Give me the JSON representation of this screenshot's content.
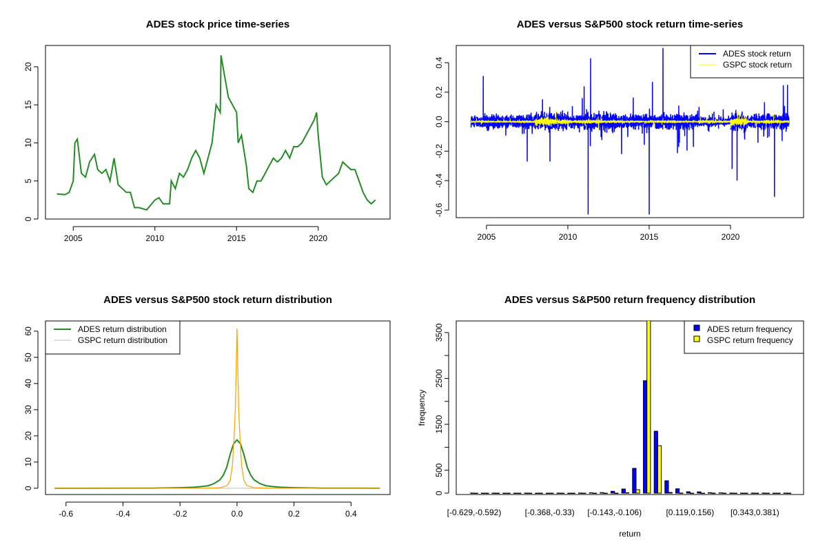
{
  "chart_data": [
    {
      "type": "line",
      "title": "ADES stock price time-series",
      "xlabel": "",
      "ylabel": "",
      "xlim": [
        2003.3,
        2024.4
      ],
      "ylim": [
        0,
        22.8
      ],
      "xticks": [
        2005,
        2010,
        2015,
        2020
      ],
      "xtick_labels": [
        "2005",
        "2010",
        "2015",
        "2020"
      ],
      "yticks": [
        0,
        5,
        10,
        15,
        20
      ],
      "ytick_labels": [
        "0",
        "5",
        "10",
        "15",
        "20"
      ],
      "color": "#228B22",
      "x": [
        2004.0,
        2004.5,
        2004.75,
        2005.0,
        2005.1,
        2005.25,
        2005.5,
        2005.75,
        2006.0,
        2006.3,
        2006.5,
        2006.75,
        2007.0,
        2007.25,
        2007.5,
        2007.75,
        2008.0,
        2008.25,
        2008.5,
        2008.75,
        2009.0,
        2009.5,
        2010.0,
        2010.25,
        2010.5,
        2010.9,
        2011.0,
        2011.25,
        2011.5,
        2011.75,
        2012.0,
        2012.25,
        2012.5,
        2012.75,
        2013.0,
        2013.25,
        2013.5,
        2013.75,
        2014.0,
        2014.05,
        2014.25,
        2014.5,
        2014.75,
        2015.0,
        2015.1,
        2015.3,
        2015.6,
        2015.75,
        2016.0,
        2016.25,
        2016.5,
        2016.75,
        2017.0,
        2017.25,
        2017.5,
        2017.75,
        2018.0,
        2018.25,
        2018.5,
        2018.75,
        2019.0,
        2019.25,
        2019.5,
        2019.75,
        2019.9,
        2020.0,
        2020.25,
        2020.5,
        2020.75,
        2021.0,
        2021.25,
        2021.5,
        2021.75,
        2022.0,
        2022.25,
        2022.5,
        2022.75,
        2023.0,
        2023.25,
        2023.5
      ],
      "y": [
        3.3,
        3.2,
        3.5,
        5,
        10,
        10.5,
        6,
        5.5,
        7.5,
        8.5,
        6.5,
        6,
        6.5,
        5,
        8,
        4.5,
        4,
        3.5,
        3.5,
        1.5,
        1.5,
        1.2,
        2.5,
        2.8,
        2,
        2,
        5,
        4,
        6,
        5.5,
        6.5,
        8,
        9,
        8,
        6,
        8,
        10,
        15,
        14,
        21.5,
        19,
        16,
        15,
        14,
        10,
        11,
        7,
        4,
        3.5,
        5,
        5,
        6,
        7,
        8,
        7.5,
        8,
        9,
        8,
        9.5,
        9.5,
        10,
        11,
        12,
        13,
        14,
        11,
        5.5,
        4.5,
        5,
        5.5,
        6,
        7.5,
        7,
        6.5,
        6.5,
        5,
        3.5,
        2.5,
        2,
        2.5
      ]
    },
    {
      "type": "line",
      "title": "ADES versus S&P500 stock return time-series",
      "xlim": [
        2003.14,
        2024.49
      ],
      "ylim": [
        -0.651,
        0.517
      ],
      "xticks": [
        2005,
        2010,
        2015,
        2020
      ],
      "xtick_labels": [
        "2005",
        "2010",
        "2015",
        "2020"
      ],
      "yticks": [
        -0.6,
        -0.4,
        -0.2,
        0.0,
        0.2,
        0.4
      ],
      "ytick_labels": [
        "-0.6",
        "-0.4",
        "-0.2",
        "0.0",
        "0.2",
        "0.4"
      ],
      "x_range": [
        2004.05,
        2023.6
      ],
      "series": [
        {
          "name": "ADES stock return",
          "color": "#0000FF",
          "volatility_by_year": {
            "start": 2004,
            "values": [
              0.04,
              0.05,
              0.05,
              0.05,
              0.06,
              0.07,
              0.05,
              0.06,
              0.07,
              0.05,
              0.05,
              0.05,
              0.06,
              0.05,
              0.04,
              0.03,
              0.06,
              0.05,
              0.06,
              0.07
            ]
          },
          "spikes": [
            [
              2004.8,
              0.31
            ],
            [
              2007.5,
              -0.27
            ],
            [
              2008.9,
              -0.27
            ],
            [
              2011.0,
              0.24
            ],
            [
              2011.25,
              -0.63
            ],
            [
              2011.4,
              0.43
            ],
            [
              2013.3,
              -0.22
            ],
            [
              2015.0,
              -0.63
            ],
            [
              2015.2,
              0.27
            ],
            [
              2015.85,
              0.5
            ],
            [
              2020.1,
              -0.32
            ],
            [
              2020.4,
              -0.4
            ],
            [
              2022.7,
              -0.51
            ],
            [
              2023.5,
              0.25
            ]
          ]
        },
        {
          "name": "GSPC stock return",
          "color": "#FFFF00",
          "volatility_by_year": {
            "start": 2004,
            "values": [
              0.008,
              0.006,
              0.006,
              0.01,
              0.03,
              0.02,
              0.012,
              0.015,
              0.01,
              0.008,
              0.008,
              0.01,
              0.01,
              0.005,
              0.012,
              0.01,
              0.03,
              0.01,
              0.015,
              0.01
            ]
          },
          "spikes": []
        }
      ],
      "legend": {
        "position": "top-right",
        "entries": [
          "ADES stock return",
          "GSPC stock return"
        ]
      }
    },
    {
      "type": "line",
      "title": "ADES versus S&P500 stock return distribution",
      "xlim": [
        -0.672,
        0.537
      ],
      "ylim": [
        -2.4,
        63.9
      ],
      "xticks": [
        -0.6,
        -0.4,
        -0.2,
        0.0,
        0.2,
        0.4
      ],
      "xtick_labels": [
        "-0.6",
        "-0.4",
        "-0.2",
        "0.0",
        "0.2",
        "0.4"
      ],
      "yticks": [
        0,
        10,
        20,
        30,
        40,
        50,
        60
      ],
      "ytick_labels": [
        "0",
        "10",
        "20",
        "30",
        "40",
        "50",
        "60"
      ],
      "series": [
        {
          "name": "ADES return distribution",
          "color": "#228B22",
          "x": [
            -0.64,
            -0.3,
            -0.2,
            -0.15,
            -0.12,
            -0.1,
            -0.08,
            -0.06,
            -0.048,
            -0.036,
            -0.024,
            -0.012,
            0,
            0.012,
            0.024,
            0.036,
            0.048,
            0.06,
            0.08,
            0.1,
            0.12,
            0.15,
            0.2,
            0.3,
            0.5
          ],
          "y": [
            0,
            0.05,
            0.2,
            0.4,
            0.7,
            1,
            1.8,
            3.2,
            5,
            8,
            13,
            17,
            18.5,
            17,
            13,
            8,
            5,
            3.2,
            1.8,
            1,
            0.7,
            0.4,
            0.2,
            0.05,
            0
          ]
        },
        {
          "name": "GSPC return distribution",
          "color": "#FFA500",
          "x": [
            -0.64,
            -0.12,
            -0.06,
            -0.035,
            -0.024,
            -0.016,
            -0.01,
            -0.006,
            -0.003,
            0,
            0.003,
            0.006,
            0.01,
            0.016,
            0.024,
            0.035,
            0.06,
            0.12,
            0.5
          ],
          "y": [
            0,
            0,
            0.2,
            1,
            3,
            9,
            20,
            30,
            45,
            61,
            45,
            30,
            20,
            9,
            3,
            1,
            0.2,
            0,
            0
          ]
        }
      ],
      "baseline_color": "#BEBEBE",
      "legend": {
        "position": "top-left",
        "entries": [
          "ADES return distribution",
          "GSPC return distribution"
        ],
        "colors": [
          "#228B22",
          "#BEBEBE"
        ]
      }
    },
    {
      "type": "bar",
      "title": "ADES versus S&P500 return frequency distribution",
      "xlabel": "return",
      "ylabel": "frequency",
      "ylim": [
        -30,
        3753
      ],
      "yticks": [
        0,
        500,
        1000,
        1500,
        2000,
        2500,
        3000,
        3500
      ],
      "ytick_labels": [
        "0",
        "500",
        "",
        "1500",
        "",
        "2500",
        "",
        "3500"
      ],
      "bin_count": 30,
      "category_labels": [
        {
          "bin": 0,
          "label": "[-0.629,-0.592)"
        },
        {
          "bin": 7,
          "label": "[-0.368,-0.33)"
        },
        {
          "bin": 13,
          "label": "[-0.143,-0.106)"
        },
        {
          "bin": 20,
          "label": "[0.119,0.156)"
        },
        {
          "bin": 26,
          "label": "[0.343,0.381)"
        }
      ],
      "series": [
        {
          "name": "ADES return frequency",
          "color": "#0000FF",
          "values": [
            2,
            0,
            1,
            0,
            0,
            1,
            0,
            0,
            1,
            0,
            3,
            8,
            12,
            40,
            90,
            540,
            2450,
            1350,
            270,
            95,
            30,
            28,
            10,
            8,
            2,
            1,
            1,
            1,
            0,
            1
          ]
        },
        {
          "name": "GSPC return frequency",
          "color": "#FFFF00",
          "values": [
            0,
            0,
            0,
            0,
            0,
            0,
            0,
            0,
            0,
            0,
            0,
            0,
            0,
            0,
            10,
            75,
            3900,
            1035,
            15,
            3,
            0,
            0,
            0,
            0,
            0,
            0,
            0,
            0,
            0,
            0
          ]
        }
      ],
      "legend": {
        "position": "top-right",
        "entries": [
          "ADES return frequency",
          "GSPC return frequency"
        ]
      }
    }
  ]
}
